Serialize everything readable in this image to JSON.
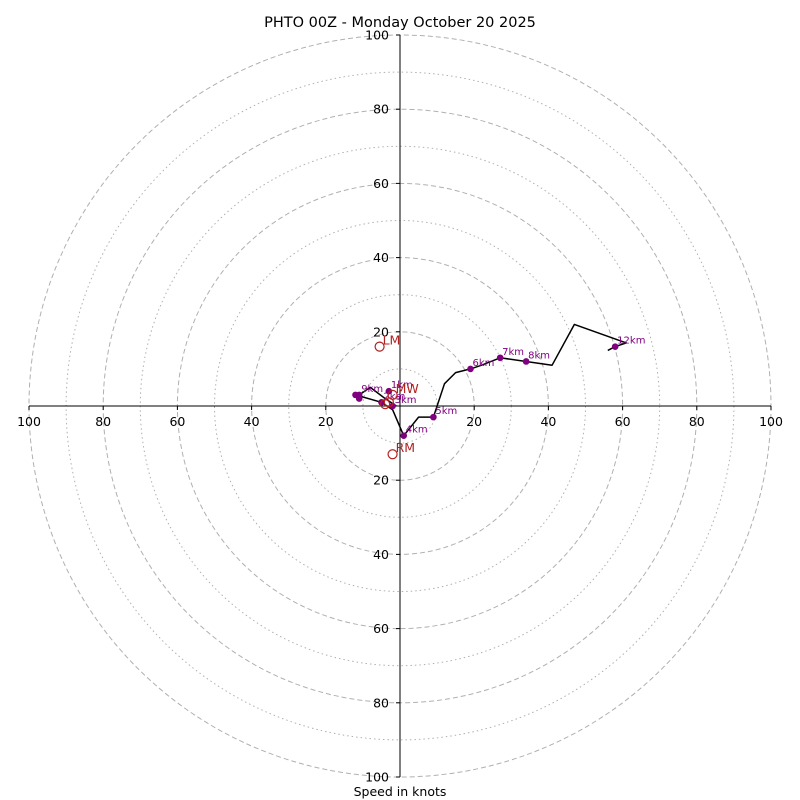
{
  "chart_data": {
    "type": "hodograph",
    "title": "PHTO 00Z - Monday October 20 2025",
    "xlabel": "Speed in knots",
    "range": [
      -100,
      100
    ],
    "ring_labels": [
      "20",
      "40",
      "60",
      "80",
      "100"
    ],
    "ring_major": [
      20,
      40,
      60,
      80,
      100
    ],
    "ring_minor": [
      10,
      30,
      50,
      70,
      90
    ],
    "hodograph_line": {
      "color": "#000000",
      "points": [
        [
          -1,
          0
        ],
        [
          -4,
          2
        ],
        [
          -8,
          5
        ],
        [
          -11,
          3
        ],
        [
          -12,
          3
        ],
        [
          -5,
          1
        ],
        [
          -2,
          -1
        ],
        [
          1,
          -8
        ],
        [
          5,
          -3
        ],
        [
          9,
          -3
        ],
        [
          12,
          6
        ],
        [
          15,
          9
        ],
        [
          19,
          10
        ],
        [
          22,
          11
        ],
        [
          27,
          13
        ],
        [
          34,
          12
        ],
        [
          41,
          11
        ],
        [
          47,
          22
        ],
        [
          61,
          17
        ],
        [
          58,
          16
        ],
        [
          56,
          15
        ]
      ]
    },
    "height_markers": [
      {
        "label": "1km",
        "u": -3,
        "v": 4
      },
      {
        "label": "2km",
        "u": -5,
        "v": 1
      },
      {
        "label": "3km",
        "u": -2,
        "v": 0
      },
      {
        "label": "4km",
        "u": 1,
        "v": -8
      },
      {
        "label": "5km",
        "u": 9,
        "v": -3
      },
      {
        "label": "6km",
        "u": 19,
        "v": 10
      },
      {
        "label": "7km",
        "u": 27,
        "v": 13
      },
      {
        "label": "8km",
        "u": 34,
        "v": 12
      },
      {
        "label": "9km",
        "u": -11,
        "v": 3
      },
      {
        "label": "",
        "u": -12,
        "v": 3
      },
      {
        "label": "",
        "u": -11,
        "v": 2
      },
      {
        "label": "12km",
        "u": 58,
        "v": 16
      }
    ],
    "motion_points": [
      {
        "label": "LM",
        "u": -5.5,
        "v": 16
      },
      {
        "label": "MW",
        "u": -2,
        "v": 3
      },
      {
        "label": "RM",
        "u": -2,
        "v": -13
      },
      {
        "label": "",
        "u": -4,
        "v": 0.5
      },
      {
        "label": "",
        "u": -3,
        "v": 1
      }
    ],
    "colors": {
      "ring": "#b0b0b0",
      "axis": "#000000",
      "height_marker": "#800080",
      "motion": "#b22222",
      "line": "#000000"
    }
  }
}
